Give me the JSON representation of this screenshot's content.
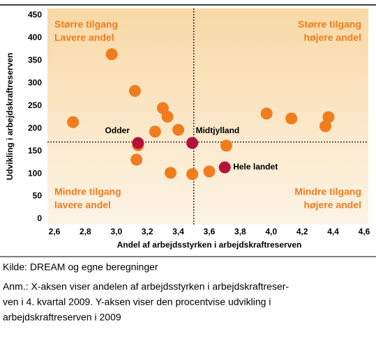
{
  "chart_data": {
    "type": "scatter",
    "xlabel": "Andel af arbejdsstyrken i arbejdskraftreserven",
    "ylabel": "Udvikling i arbejdskraftreserven",
    "xlim": [
      2.6,
      4.6
    ],
    "xticks": [
      {
        "value": 2.6,
        "label": "2,6"
      },
      {
        "value": 2.8,
        "label": "2,8"
      },
      {
        "value": 3.0,
        "label": "3,0"
      },
      {
        "value": 3.2,
        "label": "3,2"
      },
      {
        "value": 3.4,
        "label": "3,4"
      },
      {
        "value": 3.6,
        "label": "3,6"
      },
      {
        "value": 3.8,
        "label": "3,8"
      },
      {
        "value": 4.0,
        "label": "4,0"
      },
      {
        "value": 4.2,
        "label": "4,2"
      },
      {
        "value": 4.4,
        "label": "4,4"
      },
      {
        "value": 4.6,
        "label": "4,6"
      }
    ],
    "ylim": [
      0,
      450
    ],
    "yticks": [
      0,
      50,
      100,
      150,
      200,
      250,
      300,
      350,
      400,
      450
    ],
    "vline": 3.5,
    "hline": 170,
    "series": [
      {
        "color": "#f07c1e",
        "x": [
          2.72,
          2.97,
          3.12,
          3.3,
          3.33,
          3.25,
          3.4,
          3.14,
          3.13,
          3.35,
          3.49,
          3.6,
          3.71,
          3.97,
          4.13,
          4.35,
          4.37
        ],
        "values": [
          214,
          364,
          283,
          245,
          226,
          193,
          197,
          163,
          131,
          102,
          99,
          105,
          162,
          233,
          222,
          205,
          225
        ]
      },
      {
        "color": "#b5123b",
        "x": [
          3.14,
          3.49,
          3.7
        ],
        "values": [
          168,
          168,
          114
        ],
        "point_labels": [
          "Odder",
          "Midtjylland",
          "Hele landet"
        ]
      }
    ],
    "annotations": [
      {
        "lines": [
          "Større tilgang",
          "Lavere andel"
        ]
      },
      {
        "lines": [
          "Større tilgang",
          "højere andel"
        ]
      },
      {
        "lines": [
          "Mindre tilgang",
          "lavere andel"
        ]
      },
      {
        "lines": [
          "Mindre tilgang",
          "højere andel"
        ]
      }
    ]
  },
  "notes": {
    "source": "Kilde: DREAM og egne beregninger",
    "lines": [
      "Anm.: X-aksen viser andelen af arbejdsstyrken i arbejdskraftreser-",
      "ven i 4. kvartal 2009. Y-aksen viser den procentvise udvikling i",
      "arbejdskraftreserven i 2009"
    ]
  }
}
